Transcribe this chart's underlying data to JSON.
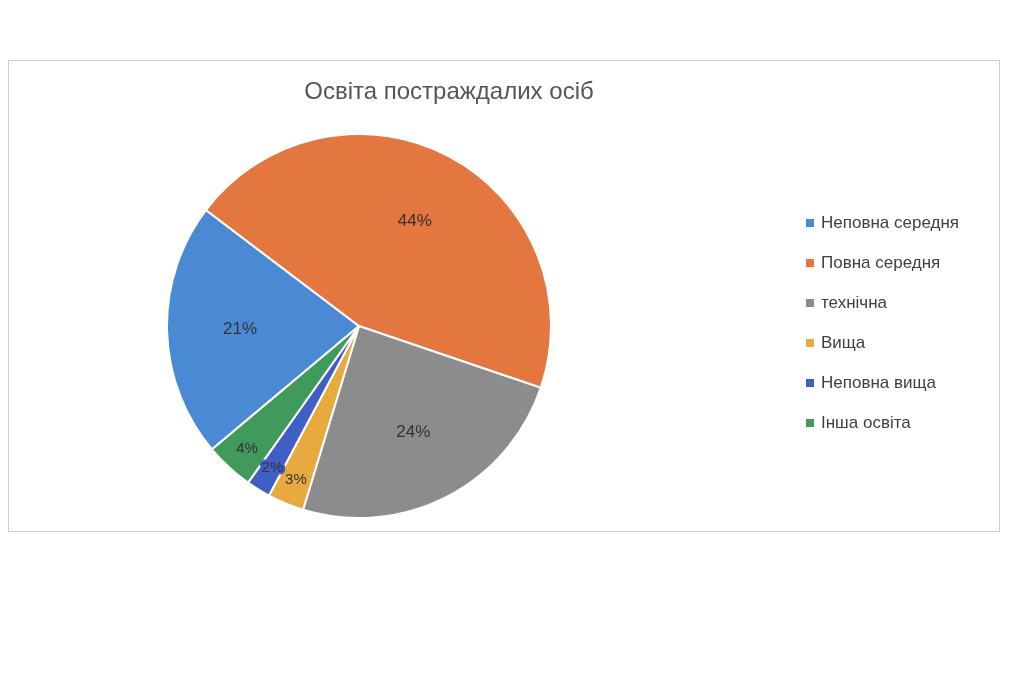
{
  "chart_data": {
    "type": "pie",
    "title": "Освіта постраждалих осіб",
    "categories": [
      "Неповна середня",
      "Повна середня",
      "технічна",
      "Вища",
      "Неповна вища",
      "Інша освіта"
    ],
    "values": [
      21,
      44,
      24,
      3,
      2,
      4
    ],
    "value_labels": [
      "21%",
      "44%",
      "24%",
      "3%",
      "2%",
      "4%"
    ],
    "colors": [
      "#4a8ad4",
      "#e4763f",
      "#8c8c8c",
      "#e8a93e",
      "#3f5fc4",
      "#3f9a5c"
    ],
    "legend": "right"
  }
}
